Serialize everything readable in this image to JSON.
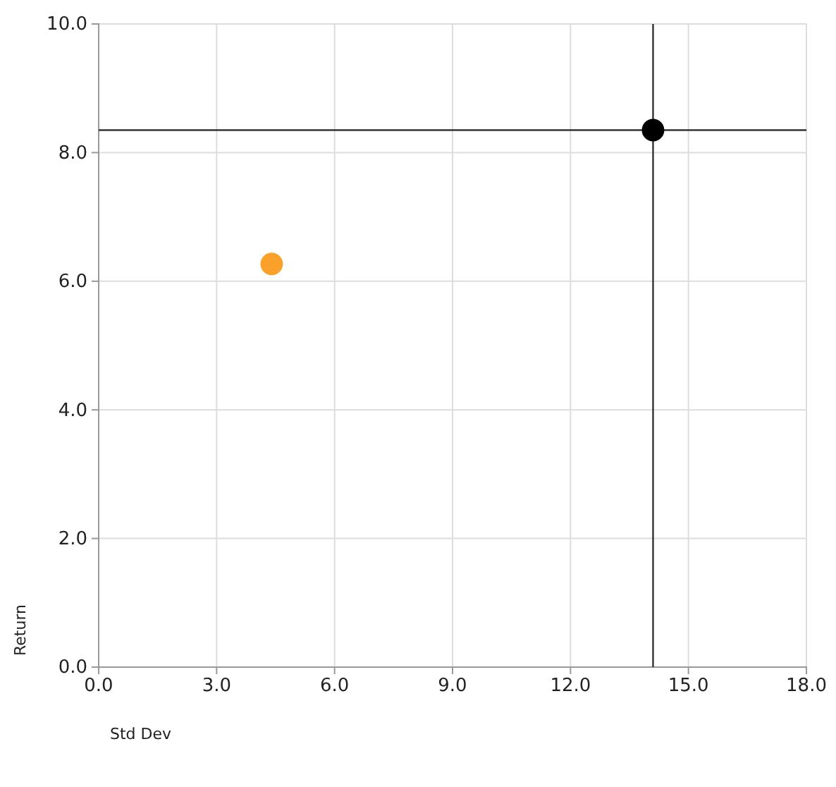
{
  "chart_data": {
    "type": "scatter",
    "xlabel": "Std Dev",
    "ylabel": "Return",
    "xlim": [
      0,
      18
    ],
    "ylim": [
      0,
      10
    ],
    "xticks": [
      {
        "value": 0,
        "label": "0.0"
      },
      {
        "value": 3,
        "label": "3.0"
      },
      {
        "value": 6,
        "label": "6.0"
      },
      {
        "value": 9,
        "label": "9.0"
      },
      {
        "value": 12,
        "label": "12.0"
      },
      {
        "value": 15,
        "label": "15.0"
      },
      {
        "value": 18,
        "label": "18.0"
      }
    ],
    "yticks": [
      {
        "value": 0,
        "label": "0.0"
      },
      {
        "value": 2,
        "label": "2.0"
      },
      {
        "value": 4,
        "label": "4.0"
      },
      {
        "value": 6,
        "label": "6.0"
      },
      {
        "value": 8,
        "label": "8.0"
      },
      {
        "value": 10,
        "label": "10.0"
      }
    ],
    "grid": true,
    "marker": "circle",
    "series": [
      {
        "color": "#f9a12a",
        "x": [
          4.4
        ],
        "values": [
          6.27
        ]
      },
      {
        "color": "#000000",
        "x": [
          14.1
        ],
        "values": [
          8.35
        ]
      }
    ],
    "ref_lines": [
      {
        "axis": "x",
        "value": 14.1,
        "color": "#333333"
      },
      {
        "axis": "y",
        "value": 8.35,
        "color": "#333333"
      }
    ]
  }
}
